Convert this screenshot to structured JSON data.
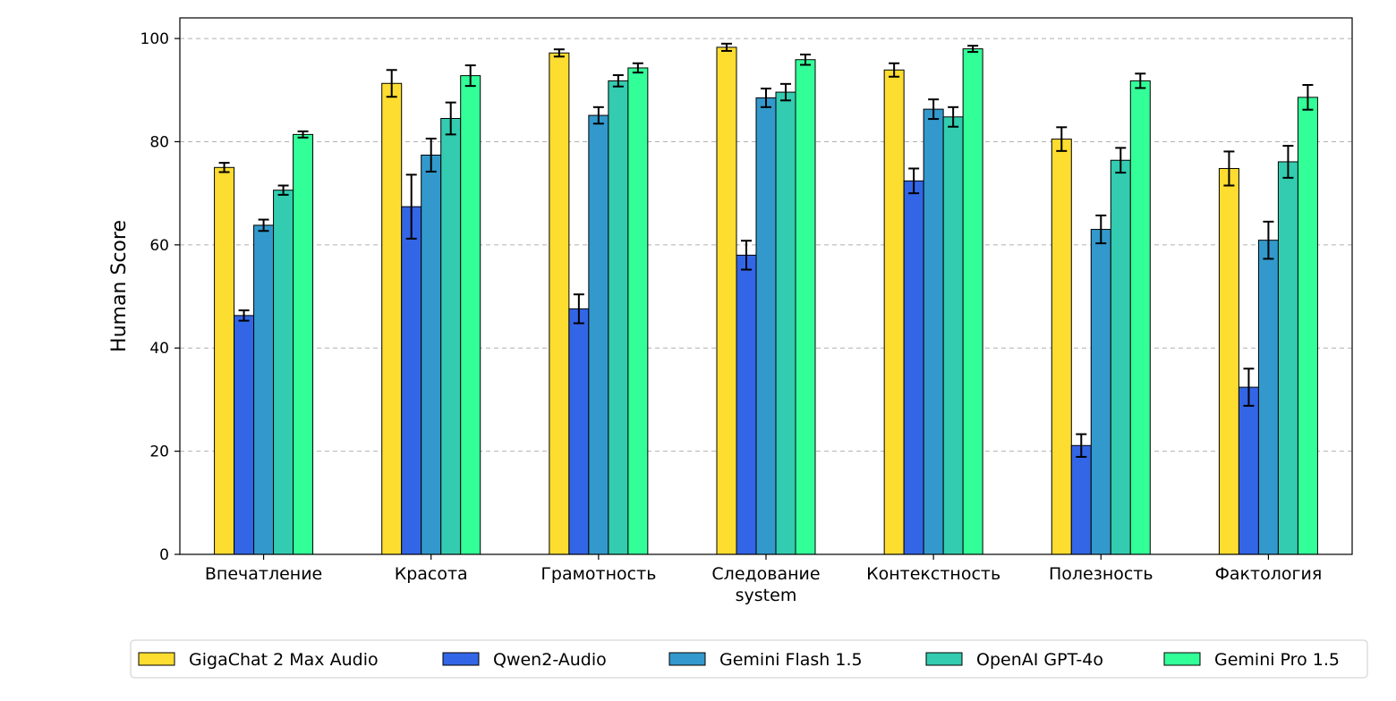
{
  "chart_data": {
    "type": "bar",
    "title": "",
    "xlabel": "",
    "ylabel": "Human Score",
    "ylim": [
      0,
      104
    ],
    "yticks": [
      0,
      20,
      40,
      60,
      80,
      100
    ],
    "grid": "horizontal dashed",
    "legend_position": "bottom",
    "categories": [
      [
        "Впечатление"
      ],
      [
        "Красота"
      ],
      [
        "Грамотность"
      ],
      [
        "Следование",
        "system"
      ],
      [
        "Контекстность"
      ],
      [
        "Полезность"
      ],
      [
        "Фактология"
      ]
    ],
    "series": [
      {
        "name": "GigaChat 2 Max Audio",
        "color": "#FDDD30",
        "values": [
          75.0,
          91.3,
          97.2,
          98.3,
          93.9,
          80.5,
          74.8
        ],
        "errors": [
          0.9,
          2.6,
          0.7,
          0.7,
          1.3,
          2.3,
          3.3
        ]
      },
      {
        "name": "Qwen2-Audio",
        "color": "#3366E6",
        "values": [
          46.3,
          67.4,
          47.6,
          58.0,
          72.4,
          21.1,
          32.4
        ],
        "errors": [
          1.0,
          6.2,
          2.8,
          2.8,
          2.4,
          2.2,
          3.6
        ]
      },
      {
        "name": "Gemini Flash 1.5",
        "color": "#3399CC",
        "values": [
          63.8,
          77.4,
          85.1,
          88.5,
          86.3,
          63.0,
          60.9
        ],
        "errors": [
          1.1,
          3.2,
          1.6,
          1.8,
          1.9,
          2.7,
          3.6
        ]
      },
      {
        "name": "OpenAI GPT-4o",
        "color": "#33CCB0",
        "values": [
          70.6,
          84.5,
          91.8,
          89.6,
          84.8,
          76.4,
          76.1
        ],
        "errors": [
          0.9,
          3.1,
          1.1,
          1.6,
          1.9,
          2.4,
          3.1
        ]
      },
      {
        "name": "Gemini Pro 1.5",
        "color": "#33FF99",
        "values": [
          81.4,
          92.8,
          94.3,
          95.9,
          98.0,
          91.8,
          88.6
        ],
        "errors": [
          0.6,
          2.0,
          0.9,
          1.0,
          0.6,
          1.4,
          2.4
        ]
      }
    ]
  }
}
